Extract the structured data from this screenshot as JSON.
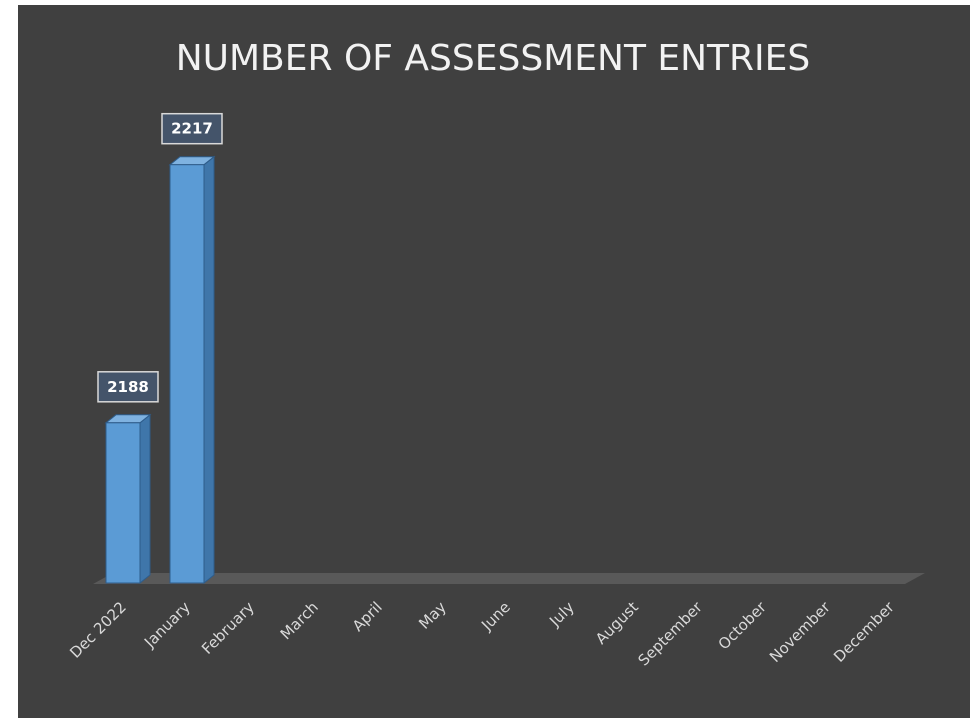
{
  "chart_data": {
    "type": "bar3d",
    "title": "NUMBER OF ASSESSMENT ENTRIES",
    "categories": [
      "Dec 2022",
      "January",
      "February",
      "March",
      "April",
      "May",
      "June",
      "July",
      "August",
      "September",
      "October",
      "November",
      "December"
    ],
    "values": [
      2188,
      2217,
      null,
      null,
      null,
      null,
      null,
      null,
      null,
      null,
      null,
      null,
      null
    ],
    "color": "#5b9bd5",
    "ylim": [
      2170,
      2220
    ]
  }
}
